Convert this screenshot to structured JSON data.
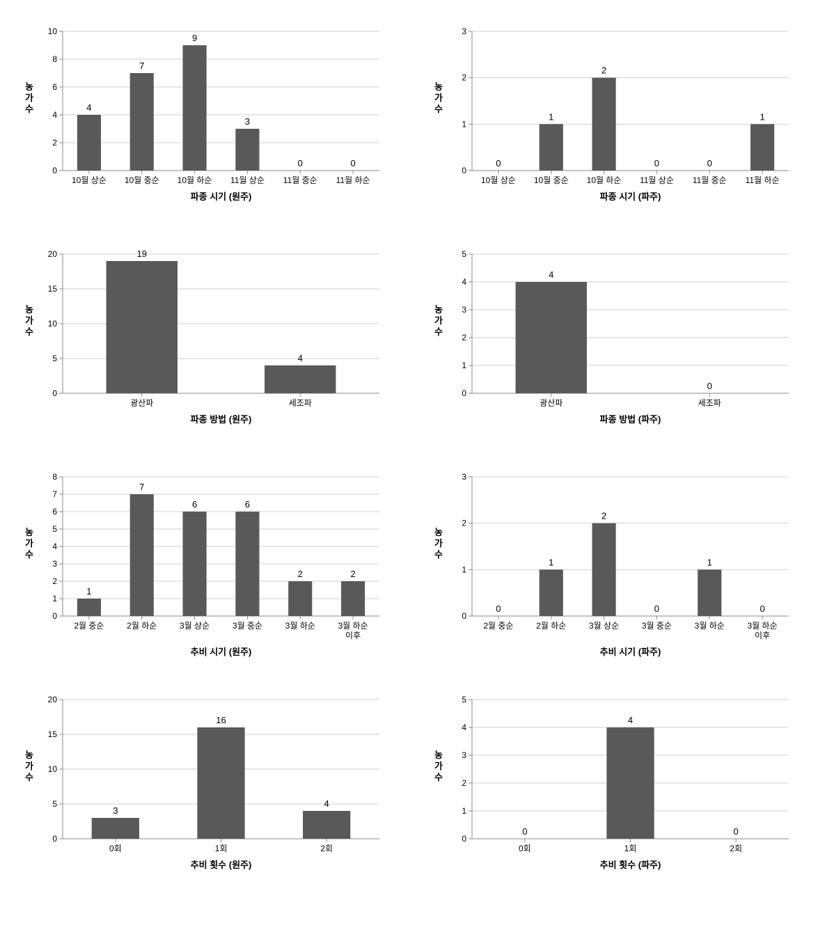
{
  "global": {
    "bar_color": "#595959",
    "background_color": "#ffffff",
    "grid_color": "#d0d0d0",
    "axis_color": "#888888",
    "text_color": "#000000",
    "title_fontsize": 13,
    "tick_fontsize": 12,
    "value_fontsize": 13,
    "y_axis_label": "농가수"
  },
  "charts": [
    {
      "id": "chart0",
      "type": "bar",
      "title": "파종 시기 (원주)",
      "categories": [
        "10월 상순",
        "10월 중순",
        "10월 하순",
        "11월 상순",
        "11월 중순",
        "11월 하순"
      ],
      "values": [
        4,
        7,
        9,
        3,
        0,
        0
      ],
      "ylim": [
        0,
        10
      ],
      "ytick_step": 2,
      "bar_width": 0.45
    },
    {
      "id": "chart1",
      "type": "bar",
      "title": "파종 시기 (파주)",
      "categories": [
        "10월 상순",
        "10월 중순",
        "10월 하순",
        "11월 상순",
        "11월 중순",
        "11월 하순"
      ],
      "values": [
        0,
        1,
        2,
        0,
        0,
        1
      ],
      "ylim": [
        0,
        3
      ],
      "ytick_step": 1,
      "bar_width": 0.45
    },
    {
      "id": "chart2",
      "type": "bar",
      "title": "파종 방법 (원주)",
      "categories": [
        "광산파",
        "세조파"
      ],
      "values": [
        19,
        4
      ],
      "ylim": [
        0,
        20
      ],
      "ytick_step": 5,
      "bar_width": 0.45
    },
    {
      "id": "chart3",
      "type": "bar",
      "title": "파종 방법 (파주)",
      "categories": [
        "광산파",
        "세조파"
      ],
      "values": [
        4,
        0
      ],
      "ylim": [
        0,
        5
      ],
      "ytick_step": 1,
      "bar_width": 0.45
    },
    {
      "id": "chart4",
      "type": "bar",
      "title": "추비 시기 (원주)",
      "categories": [
        "2월 중순",
        "2월 하순",
        "3월 상순",
        "3월 중순",
        "3월 하순",
        "3월 하순\n이후"
      ],
      "values": [
        1,
        7,
        6,
        6,
        2,
        2
      ],
      "ylim": [
        0,
        8
      ],
      "ytick_step": 1,
      "bar_width": 0.45
    },
    {
      "id": "chart5",
      "type": "bar",
      "title": "추비 시기 (파주)",
      "categories": [
        "2월 중순",
        "2월 하순",
        "3월 상순",
        "3월 중순",
        "3월 하순",
        "3월 하순\n이후"
      ],
      "values": [
        0,
        1,
        2,
        0,
        1,
        0
      ],
      "ylim": [
        0,
        3
      ],
      "ytick_step": 1,
      "bar_width": 0.45
    },
    {
      "id": "chart6",
      "type": "bar",
      "title": "추비 횟수 (원주)",
      "categories": [
        "0회",
        "1회",
        "2회"
      ],
      "values": [
        3,
        16,
        4
      ],
      "ylim": [
        0,
        20
      ],
      "ytick_step": 5,
      "bar_width": 0.45
    },
    {
      "id": "chart7",
      "type": "bar",
      "title": "추비 횟수 (파주)",
      "categories": [
        "0회",
        "1회",
        "2회"
      ],
      "values": [
        0,
        4,
        0
      ],
      "ylim": [
        0,
        5
      ],
      "ytick_step": 1,
      "bar_width": 0.45
    }
  ]
}
